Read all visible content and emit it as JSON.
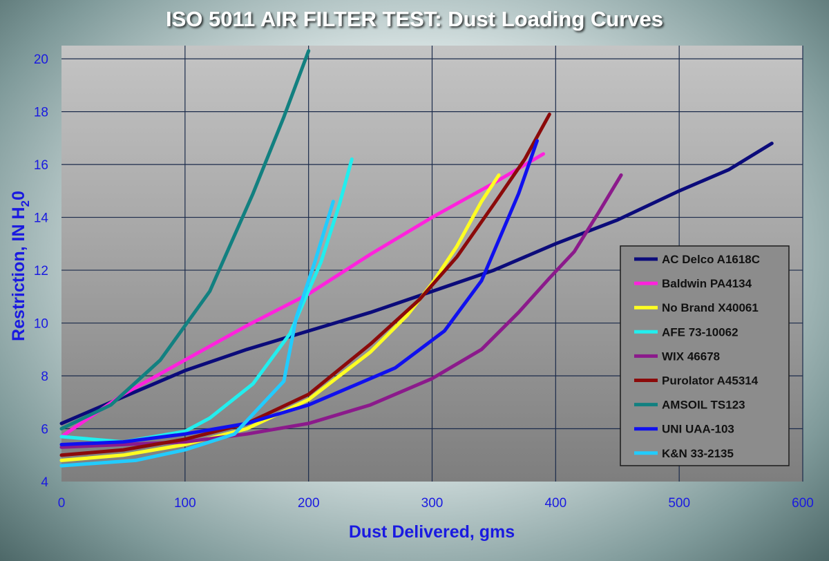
{
  "chart_data": {
    "type": "line",
    "title": "ISO 5011 AIR FILTER TEST: Dust Loading Curves",
    "xlabel": "Dust Delivered, gms",
    "ylabel": "Restriction, IN H20",
    "xlim": [
      0,
      600
    ],
    "ylim": [
      4,
      20.5
    ],
    "xticks": [
      0,
      100,
      200,
      300,
      400,
      500,
      600
    ],
    "yticks": [
      4,
      6,
      8,
      10,
      12,
      14,
      16,
      18,
      20
    ],
    "grid": true,
    "legend_position": "right",
    "series": [
      {
        "name": "AC Delco A1618C",
        "color": "#0b0b7a",
        "x": [
          0,
          50,
          100,
          150,
          200,
          250,
          300,
          350,
          400,
          450,
          500,
          540,
          575
        ],
        "y": [
          6.2,
          7.2,
          8.2,
          9.0,
          9.7,
          10.4,
          11.2,
          12.0,
          13.0,
          13.9,
          15.0,
          15.8,
          16.8
        ]
      },
      {
        "name": "Baldwin PA4134",
        "color": "#ff22dd",
        "x": [
          0,
          50,
          100,
          150,
          200,
          250,
          300,
          350,
          390
        ],
        "y": [
          5.7,
          7.3,
          8.6,
          9.9,
          11.1,
          12.6,
          14.0,
          15.3,
          16.4
        ]
      },
      {
        "name": "No Brand X40061",
        "color": "#ffff22",
        "x": [
          0,
          50,
          100,
          150,
          200,
          250,
          280,
          300,
          320,
          340,
          354
        ],
        "y": [
          4.8,
          5.0,
          5.4,
          6.0,
          7.1,
          8.9,
          10.3,
          11.5,
          12.9,
          14.6,
          15.6
        ]
      },
      {
        "name": "AFE 73-10062",
        "color": "#22eeee",
        "x": [
          0,
          50,
          100,
          120,
          155,
          185,
          210,
          225,
          235
        ],
        "y": [
          5.7,
          5.5,
          5.9,
          6.4,
          7.7,
          9.6,
          12.3,
          14.5,
          16.2
        ]
      },
      {
        "name": "WIX 46678",
        "color": "#8b1a8b",
        "x": [
          0,
          100,
          150,
          200,
          250,
          300,
          340,
          370,
          395,
          415,
          435,
          453
        ],
        "y": [
          5.3,
          5.5,
          5.8,
          6.2,
          6.9,
          7.9,
          9.0,
          10.4,
          11.7,
          12.7,
          14.2,
          15.6
        ]
      },
      {
        "name": "Purolator A45314",
        "color": "#8b0a0a",
        "x": [
          0,
          50,
          100,
          150,
          200,
          250,
          290,
          320,
          350,
          375,
          395
        ],
        "y": [
          5.0,
          5.2,
          5.6,
          6.2,
          7.3,
          9.2,
          10.9,
          12.5,
          14.5,
          16.2,
          17.9
        ]
      },
      {
        "name": "AMSOIL TS123",
        "color": "#128080",
        "x": [
          0,
          40,
          80,
          120,
          155,
          180,
          200
        ],
        "y": [
          6.0,
          6.9,
          8.6,
          11.2,
          14.9,
          17.8,
          20.3
        ]
      },
      {
        "name": "UNI UAA-103",
        "color": "#1010ee",
        "x": [
          0,
          50,
          100,
          150,
          200,
          250,
          270,
          310,
          340,
          370,
          385
        ],
        "y": [
          5.4,
          5.5,
          5.8,
          6.2,
          6.9,
          7.9,
          8.3,
          9.7,
          11.6,
          14.9,
          16.9
        ]
      },
      {
        "name": "K&N 33-2135",
        "color": "#22ccff",
        "x": [
          0,
          60,
          100,
          140,
          160,
          180,
          190,
          205,
          220
        ],
        "y": [
          4.6,
          4.8,
          5.2,
          5.8,
          6.8,
          7.8,
          10.2,
          12.3,
          14.6
        ]
      }
    ]
  }
}
